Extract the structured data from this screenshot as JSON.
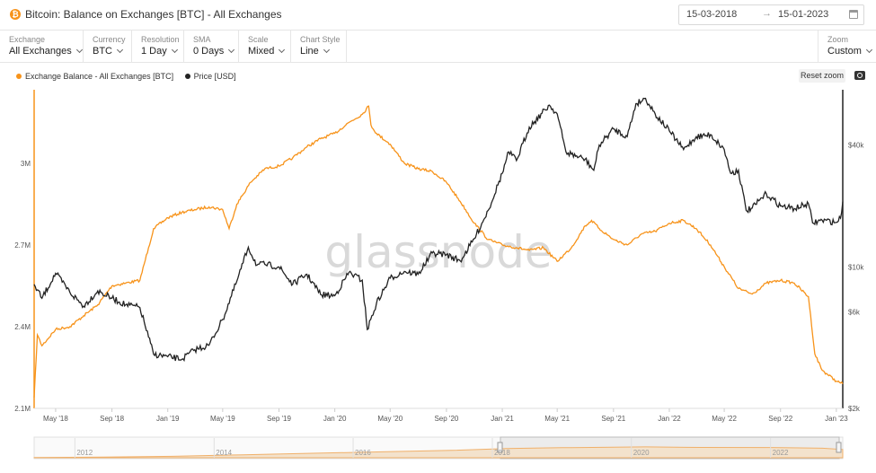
{
  "header": {
    "title": "Bitcoin: Balance on Exchanges [BTC] - All Exchanges",
    "date_start": "15-03-2018",
    "date_arrow": "→",
    "date_end": "15-01-2023"
  },
  "controls": [
    {
      "label": "Exchange",
      "value": "All Exchanges"
    },
    {
      "label": "Currency",
      "value": "BTC"
    },
    {
      "label": "Resolution",
      "value": "1 Day"
    },
    {
      "label": "SMA",
      "value": "0 Days"
    },
    {
      "label": "Scale",
      "value": "Mixed"
    },
    {
      "label": "Chart Style",
      "value": "Line"
    }
  ],
  "zoom": {
    "label": "Zoom",
    "value": "Custom"
  },
  "reset_zoom_label": "Reset zoom",
  "watermark": "glassnode",
  "colors": {
    "balance": "#f7931a",
    "price": "#222222",
    "navigator_fill": "#f3e2cc"
  },
  "chart_data": {
    "type": "line",
    "title": "",
    "x_ticks": [
      "May '18",
      "Sep '18",
      "Jan '19",
      "May '19",
      "Sep '19",
      "Jan '20",
      "May '20",
      "Sep '20",
      "Jan '21",
      "May '21",
      "Sep '21",
      "Jan '22",
      "May '22",
      "Sep '22",
      "Jan '23"
    ],
    "y_left": {
      "ticks": [
        "3M",
        "2.7M",
        "2.4M",
        "2.1M"
      ],
      "range": [
        2100000,
        3270000
      ]
    },
    "y_right": {
      "scale": "log",
      "ticks": [
        "$40k",
        "$10k",
        "$6k",
        "$2k"
      ],
      "range": [
        2000,
        75000
      ]
    },
    "legend_position": "top-left",
    "grid": false,
    "series": [
      {
        "name": "Exchange Balance - All Exchanges [BTC]",
        "axis": "left",
        "points": [
          [
            "2018-03-15",
            2140000
          ],
          [
            "2018-03-22",
            2370000
          ],
          [
            "2018-04-01",
            2330000
          ],
          [
            "2018-05-01",
            2390000
          ],
          [
            "2018-06-01",
            2400000
          ],
          [
            "2018-07-01",
            2440000
          ],
          [
            "2018-08-01",
            2480000
          ],
          [
            "2018-09-01",
            2550000
          ],
          [
            "2018-10-01",
            2560000
          ],
          [
            "2018-11-01",
            2570000
          ],
          [
            "2018-11-20",
            2690000
          ],
          [
            "2018-12-01",
            2760000
          ],
          [
            "2019-01-01",
            2800000
          ],
          [
            "2019-02-01",
            2820000
          ],
          [
            "2019-03-01",
            2830000
          ],
          [
            "2019-04-01",
            2840000
          ],
          [
            "2019-05-01",
            2830000
          ],
          [
            "2019-05-15",
            2760000
          ],
          [
            "2019-06-01",
            2850000
          ],
          [
            "2019-07-01",
            2930000
          ],
          [
            "2019-08-01",
            2980000
          ],
          [
            "2019-09-01",
            2990000
          ],
          [
            "2019-10-01",
            3020000
          ],
          [
            "2019-11-01",
            3060000
          ],
          [
            "2019-12-01",
            3090000
          ],
          [
            "2020-01-01",
            3110000
          ],
          [
            "2020-02-01",
            3150000
          ],
          [
            "2020-03-01",
            3180000
          ],
          [
            "2020-03-15",
            3210000
          ],
          [
            "2020-03-20",
            3140000
          ],
          [
            "2020-04-01",
            3110000
          ],
          [
            "2020-05-01",
            3070000
          ],
          [
            "2020-06-01",
            3000000
          ],
          [
            "2020-07-01",
            2980000
          ],
          [
            "2020-08-01",
            2970000
          ],
          [
            "2020-09-01",
            2930000
          ],
          [
            "2020-10-01",
            2860000
          ],
          [
            "2020-11-01",
            2780000
          ],
          [
            "2020-12-01",
            2720000
          ],
          [
            "2021-01-01",
            2700000
          ],
          [
            "2021-02-01",
            2690000
          ],
          [
            "2021-03-01",
            2680000
          ],
          [
            "2021-04-01",
            2690000
          ],
          [
            "2021-05-01",
            2640000
          ],
          [
            "2021-06-01",
            2690000
          ],
          [
            "2021-07-01",
            2770000
          ],
          [
            "2021-07-15",
            2790000
          ],
          [
            "2021-08-01",
            2760000
          ],
          [
            "2021-09-01",
            2720000
          ],
          [
            "2021-10-01",
            2700000
          ],
          [
            "2021-11-01",
            2740000
          ],
          [
            "2021-12-01",
            2750000
          ],
          [
            "2022-01-01",
            2780000
          ],
          [
            "2022-02-01",
            2790000
          ],
          [
            "2022-03-01",
            2760000
          ],
          [
            "2022-04-01",
            2700000
          ],
          [
            "2022-05-01",
            2620000
          ],
          [
            "2022-06-01",
            2540000
          ],
          [
            "2022-07-01",
            2520000
          ],
          [
            "2022-08-01",
            2560000
          ],
          [
            "2022-09-01",
            2570000
          ],
          [
            "2022-10-01",
            2560000
          ],
          [
            "2022-11-01",
            2510000
          ],
          [
            "2022-11-15",
            2300000
          ],
          [
            "2022-12-01",
            2240000
          ],
          [
            "2023-01-01",
            2200000
          ],
          [
            "2023-01-15",
            2190000
          ]
        ]
      },
      {
        "name": "Price [USD]",
        "axis": "right",
        "points": [
          [
            "2018-03-15",
            8200
          ],
          [
            "2018-04-01",
            7000
          ],
          [
            "2018-05-01",
            9300
          ],
          [
            "2018-06-01",
            7500
          ],
          [
            "2018-07-01",
            6400
          ],
          [
            "2018-08-01",
            7600
          ],
          [
            "2018-09-01",
            7000
          ],
          [
            "2018-10-01",
            6500
          ],
          [
            "2018-11-01",
            6300
          ],
          [
            "2018-11-20",
            4500
          ],
          [
            "2018-12-01",
            3700
          ],
          [
            "2019-01-01",
            3600
          ],
          [
            "2019-02-01",
            3500
          ],
          [
            "2019-03-01",
            3900
          ],
          [
            "2019-04-01",
            4100
          ],
          [
            "2019-05-01",
            5500
          ],
          [
            "2019-06-01",
            8500
          ],
          [
            "2019-06-26",
            12500
          ],
          [
            "2019-07-15",
            10200
          ],
          [
            "2019-08-01",
            10300
          ],
          [
            "2019-09-01",
            10000
          ],
          [
            "2019-10-01",
            8200
          ],
          [
            "2019-11-01",
            9200
          ],
          [
            "2019-12-01",
            7300
          ],
          [
            "2020-01-01",
            7200
          ],
          [
            "2020-02-01",
            9400
          ],
          [
            "2020-03-01",
            8600
          ],
          [
            "2020-03-12",
            4900
          ],
          [
            "2020-04-01",
            6600
          ],
          [
            "2020-05-01",
            8800
          ],
          [
            "2020-06-01",
            9500
          ],
          [
            "2020-07-01",
            9200
          ],
          [
            "2020-08-01",
            11700
          ],
          [
            "2020-09-01",
            11500
          ],
          [
            "2020-10-01",
            10700
          ],
          [
            "2020-11-01",
            13800
          ],
          [
            "2020-12-01",
            19000
          ],
          [
            "2021-01-01",
            29000
          ],
          [
            "2021-01-15",
            37000
          ],
          [
            "2021-02-01",
            33500
          ],
          [
            "2021-03-01",
            49000
          ],
          [
            "2021-04-14",
            63000
          ],
          [
            "2021-05-01",
            57000
          ],
          [
            "2021-05-20",
            37000
          ],
          [
            "2021-06-01",
            36000
          ],
          [
            "2021-07-01",
            34000
          ],
          [
            "2021-07-20",
            30000
          ],
          [
            "2021-08-01",
            40000
          ],
          [
            "2021-09-01",
            48000
          ],
          [
            "2021-10-01",
            44000
          ],
          [
            "2021-10-20",
            64000
          ],
          [
            "2021-11-10",
            68000
          ],
          [
            "2021-12-01",
            57000
          ],
          [
            "2022-01-01",
            47000
          ],
          [
            "2022-02-01",
            38000
          ],
          [
            "2022-03-01",
            44000
          ],
          [
            "2022-04-01",
            45000
          ],
          [
            "2022-05-01",
            38000
          ],
          [
            "2022-05-15",
            29000
          ],
          [
            "2022-06-01",
            30000
          ],
          [
            "2022-06-18",
            19000
          ],
          [
            "2022-07-01",
            19500
          ],
          [
            "2022-08-01",
            23000
          ],
          [
            "2022-09-01",
            20000
          ],
          [
            "2022-10-01",
            19400
          ],
          [
            "2022-11-01",
            20500
          ],
          [
            "2022-11-10",
            16500
          ],
          [
            "2022-12-01",
            17000
          ],
          [
            "2023-01-01",
            16600
          ],
          [
            "2023-01-10",
            17400
          ],
          [
            "2023-01-15",
            21000
          ]
        ]
      }
    ],
    "navigator": {
      "ticks": [
        "2012",
        "2014",
        "2016",
        "2018",
        "2020",
        "2022"
      ],
      "points": [
        [
          "2011-06-01",
          0.02
        ],
        [
          "2012-06-01",
          0.05
        ],
        [
          "2013-06-01",
          0.12
        ],
        [
          "2014-06-01",
          0.25
        ],
        [
          "2015-06-01",
          0.38
        ],
        [
          "2016-06-01",
          0.5
        ],
        [
          "2017-06-01",
          0.62
        ],
        [
          "2018-03-15",
          0.78
        ],
        [
          "2019-01-01",
          0.85
        ],
        [
          "2020-03-15",
          0.92
        ],
        [
          "2021-01-01",
          0.87
        ],
        [
          "2022-01-01",
          0.86
        ],
        [
          "2022-10-01",
          0.8
        ],
        [
          "2023-01-15",
          0.7
        ]
      ]
    }
  }
}
